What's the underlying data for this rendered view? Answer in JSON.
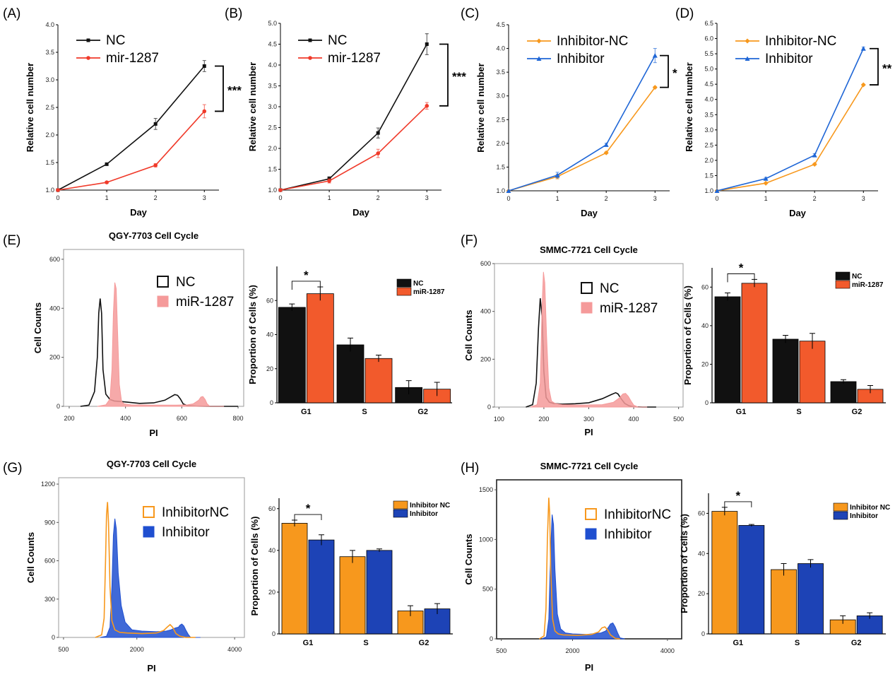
{
  "panel_labels": [
    "(A)",
    "(B)",
    "(C)",
    "(D)",
    "(E)",
    "(F)",
    "(G)",
    "(H)"
  ],
  "colors": {
    "nc_black": "#111111",
    "mir_red": "#f03a2a",
    "inhibitor_nc_orange": "#f7981d",
    "inhibitor_blue": "#1f66d6",
    "hist_red_fill": "#f59a9a",
    "bar_red": "#f25a2c",
    "bar_blue": "#1d43b6"
  },
  "chart_data": [
    {
      "id": "A",
      "type": "line",
      "x": [
        0,
        1,
        2,
        3
      ],
      "xlabel": "Day",
      "ylabel": "Relative cell number",
      "xlim": [
        0,
        3.3
      ],
      "ylim": [
        1.0,
        4.0
      ],
      "yticks": [
        "1.0",
        "1.5",
        "2.0",
        "2.5",
        "3.0",
        "3.5",
        "4.0"
      ],
      "xticks": [
        "0",
        "1",
        "2",
        "3"
      ],
      "series": [
        {
          "name": "NC",
          "values": [
            1.0,
            1.47,
            2.2,
            3.25
          ],
          "errors": [
            0,
            0.02,
            0.1,
            0.1
          ],
          "color": "#111111",
          "marker": "square"
        },
        {
          "name": "mir-1287",
          "values": [
            1.0,
            1.14,
            1.45,
            2.43
          ],
          "errors": [
            0,
            0.02,
            0.03,
            0.12
          ],
          "color": "#f03a2a",
          "marker": "circle"
        }
      ],
      "significance": "***"
    },
    {
      "id": "B",
      "type": "line",
      "x": [
        0,
        1,
        2,
        3
      ],
      "xlabel": "Day",
      "ylabel": "Relative cell number",
      "xlim": [
        0,
        3.3
      ],
      "ylim": [
        1.0,
        5.0
      ],
      "yticks": [
        "1.0",
        "1.5",
        "2.0",
        "2.5",
        "3.0",
        "3.5",
        "4.0",
        "4.5",
        "5.0"
      ],
      "xticks": [
        "0",
        "1",
        "2",
        "3"
      ],
      "series": [
        {
          "name": "NC",
          "values": [
            1.0,
            1.27,
            2.37,
            4.5
          ],
          "errors": [
            0,
            0.05,
            0.12,
            0.25
          ],
          "color": "#111111",
          "marker": "square"
        },
        {
          "name": "mir-1287",
          "values": [
            1.0,
            1.22,
            1.88,
            3.02
          ],
          "errors": [
            0,
            0.05,
            0.1,
            0.08
          ],
          "color": "#f03a2a",
          "marker": "circle"
        }
      ],
      "significance": "***"
    },
    {
      "id": "C",
      "type": "line",
      "x": [
        0,
        1,
        2,
        3
      ],
      "xlabel": "Day",
      "ylabel": "Relative cell number",
      "xlim": [
        0,
        3.3
      ],
      "ylim": [
        1.0,
        4.5
      ],
      "yticks": [
        "1.0",
        "1.5",
        "2.0",
        "2.5",
        "3.0",
        "3.5",
        "4.0",
        "4.5"
      ],
      "xticks": [
        "0",
        "1",
        "2",
        "3"
      ],
      "series": [
        {
          "name": "Inhibitor-NC",
          "values": [
            1.0,
            1.3,
            1.8,
            3.18
          ],
          "errors": [
            0,
            0.05,
            0.02,
            0.02
          ],
          "color": "#f7981d",
          "marker": "diamond"
        },
        {
          "name": "Inhibitor",
          "values": [
            1.0,
            1.33,
            1.97,
            3.85
          ],
          "errors": [
            0,
            0.06,
            0.03,
            0.15
          ],
          "color": "#1f66d6",
          "marker": "triangle"
        }
      ],
      "significance": "*"
    },
    {
      "id": "D",
      "type": "line",
      "x": [
        0,
        1,
        2,
        3
      ],
      "xlabel": "Day",
      "ylabel": "Relative cell number",
      "xlim": [
        0,
        3.3
      ],
      "ylim": [
        1.0,
        6.5
      ],
      "yticks": [
        "1.0",
        "1.5",
        "2.0",
        "2.5",
        "3.0",
        "3.5",
        "4.0",
        "4.5",
        "5.0",
        "5.5",
        "6.0",
        "6.5"
      ],
      "xticks": [
        "0",
        "1",
        "2",
        "3"
      ],
      "series": [
        {
          "name": "Inhibitor-NC",
          "values": [
            1.0,
            1.25,
            1.87,
            4.48
          ],
          "errors": [
            0,
            0.02,
            0.03,
            0.02
          ],
          "color": "#f7981d",
          "marker": "diamond"
        },
        {
          "name": "Inhibitor",
          "values": [
            1.0,
            1.4,
            2.17,
            5.67
          ],
          "errors": [
            0,
            0.04,
            0.05,
            0.05
          ],
          "color": "#1f66d6",
          "marker": "triangle"
        }
      ],
      "significance": "**"
    },
    {
      "id": "E-histogram",
      "type": "area",
      "title": "QGY-7703 Cell Cycle",
      "xlabel": "PI",
      "ylabel": "Cell Counts",
      "xlim": [
        180,
        820
      ],
      "ylim": [
        0,
        640
      ],
      "xticks": [
        "200",
        "400",
        "600",
        "800"
      ],
      "yticks": [
        "0",
        "200",
        "400",
        "600"
      ],
      "series": [
        {
          "name": "NC",
          "style": "outline",
          "color": "#111111",
          "x": [
            240,
            270,
            290,
            300,
            305,
            310,
            315,
            320,
            330,
            345,
            360,
            380,
            400,
            450,
            500,
            540,
            560,
            575,
            585,
            595,
            605,
            620,
            650,
            700,
            750,
            800
          ],
          "y": [
            0,
            5,
            60,
            200,
            380,
            440,
            380,
            150,
            50,
            28,
            22,
            20,
            18,
            12,
            14,
            25,
            38,
            48,
            45,
            30,
            10,
            3,
            1,
            0,
            0,
            0
          ]
        },
        {
          "name": "miR-1287",
          "style": "filled",
          "color": "#f59a9a",
          "x": [
            300,
            330,
            345,
            352,
            357,
            362,
            367,
            372,
            378,
            386,
            395,
            420,
            500,
            580,
            620,
            640,
            660,
            668,
            675,
            683,
            690,
            700,
            750
          ],
          "y": [
            0,
            6,
            30,
            150,
            380,
            505,
            480,
            300,
            90,
            20,
            10,
            6,
            5,
            5,
            6,
            10,
            25,
            38,
            40,
            28,
            10,
            0,
            0
          ]
        }
      ]
    },
    {
      "id": "E-bar",
      "type": "bar",
      "categories": [
        "G1",
        "S",
        "G2"
      ],
      "ylabel": "Proportion of Cells (%)",
      "ylim": [
        0,
        80
      ],
      "yticks": [
        "0",
        "20",
        "40",
        "60"
      ],
      "series": [
        {
          "name": "NC",
          "values": [
            56,
            34,
            9
          ],
          "errors": [
            2,
            4,
            4
          ],
          "color": "#111111"
        },
        {
          "name": "miR-1287",
          "values": [
            64,
            26,
            8
          ],
          "errors": [
            4,
            2,
            4
          ],
          "color": "#f25a2c"
        }
      ],
      "significance": "*"
    },
    {
      "id": "F-histogram",
      "type": "area",
      "title": "SMMC-7721 Cell Cycle",
      "xlabel": "PI",
      "ylabel": "Cell Counts",
      "xlim": [
        90,
        510
      ],
      "ylim": [
        0,
        600
      ],
      "xticks": [
        "100",
        "200",
        "300",
        "400",
        "500"
      ],
      "yticks": [
        "0",
        "200",
        "400",
        "600"
      ],
      "series": [
        {
          "name": "NC",
          "style": "outline",
          "color": "#111111",
          "x": [
            160,
            175,
            183,
            188,
            192,
            196,
            200,
            205,
            212,
            222,
            240,
            270,
            300,
            330,
            350,
            360,
            365,
            372,
            380,
            390,
            400,
            420,
            450
          ],
          "y": [
            0,
            10,
            100,
            330,
            455,
            380,
            150,
            40,
            20,
            15,
            12,
            14,
            18,
            35,
            52,
            60,
            55,
            35,
            15,
            5,
            1,
            0,
            0
          ]
        },
        {
          "name": "miR-1287",
          "style": "filled",
          "color": "#f59a9a",
          "x": [
            170,
            185,
            192,
            196,
            199,
            202,
            206,
            211,
            217,
            225,
            240,
            280,
            330,
            355,
            368,
            376,
            382,
            388,
            394,
            400,
            410,
            430
          ],
          "y": [
            0,
            10,
            100,
            420,
            565,
            520,
            300,
            80,
            25,
            15,
            10,
            8,
            10,
            20,
            38,
            55,
            57,
            45,
            25,
            8,
            0,
            0
          ]
        }
      ]
    },
    {
      "id": "F-bar",
      "type": "bar",
      "categories": [
        "G1",
        "S",
        "G2"
      ],
      "ylabel": "Proportion of Cells (%)",
      "ylim": [
        0,
        70
      ],
      "yticks": [
        "0",
        "20",
        "40",
        "60"
      ],
      "series": [
        {
          "name": "NC",
          "values": [
            55,
            33,
            11
          ],
          "errors": [
            2,
            2,
            1
          ],
          "color": "#111111"
        },
        {
          "name": "miR-1287",
          "values": [
            62,
            32,
            7
          ],
          "errors": [
            2,
            4,
            2
          ],
          "color": "#f25a2c"
        }
      ],
      "significance": "*"
    },
    {
      "id": "G-histogram",
      "type": "area",
      "title": "QGY-7703 Cell Cycle",
      "xlabel": "PI",
      "ylabel": "Cell Counts",
      "xlim": [
        400,
        4200
      ],
      "ylim": [
        0,
        1250
      ],
      "xticks": [
        "500",
        "2000",
        "4000"
      ],
      "yticks": [
        "0",
        "300",
        "600",
        "900",
        "1200"
      ],
      "series": [
        {
          "name": "Inhibitor",
          "style": "filled",
          "color": "#1f4fd0",
          "x": [
            1250,
            1380,
            1450,
            1490,
            1520,
            1550,
            1580,
            1620,
            1680,
            1760,
            1900,
            2100,
            2400,
            2600,
            2700,
            2760,
            2800,
            2850,
            2880,
            2920,
            2960,
            3000,
            3050,
            3100,
            3300
          ],
          "y": [
            0,
            10,
            80,
            400,
            800,
            930,
            850,
            500,
            250,
            120,
            60,
            50,
            45,
            50,
            60,
            70,
            75,
            80,
            95,
            105,
            90,
            60,
            25,
            0,
            0
          ]
        },
        {
          "name": "InhibitorNC",
          "style": "outline",
          "color": "#f7981d",
          "x": [
            1150,
            1280,
            1330,
            1360,
            1380,
            1400,
            1420,
            1450,
            1490,
            1550,
            1650,
            1800,
            2100,
            2400,
            2550,
            2620,
            2680,
            2730,
            2800,
            2880,
            3000,
            3200
          ],
          "y": [
            0,
            20,
            150,
            600,
            960,
            1060,
            900,
            400,
            130,
            60,
            40,
            35,
            30,
            35,
            55,
            80,
            100,
            80,
            30,
            10,
            0,
            0
          ]
        }
      ]
    },
    {
      "id": "G-bar",
      "type": "bar",
      "categories": [
        "G1",
        "S",
        "G2"
      ],
      "ylabel": "Proportion of Cells (%)",
      "ylim": [
        0,
        65
      ],
      "yticks": [
        "0",
        "20",
        "40",
        "60"
      ],
      "series": [
        {
          "name": "Inhibitor NC",
          "values": [
            53,
            37,
            11
          ],
          "errors": [
            1.5,
            3,
            2.5
          ],
          "color": "#f7981d"
        },
        {
          "name": "Inhibitor",
          "values": [
            45,
            40,
            12
          ],
          "errors": [
            2.5,
            0.7,
            2.5
          ],
          "color": "#1d43b6"
        }
      ],
      "significance": "*"
    },
    {
      "id": "H-histogram",
      "type": "area",
      "title": "SMMC-7721 Cell Cycle",
      "xlabel": "PI",
      "ylabel": "Cell Counts",
      "xlim": [
        400,
        4300
      ],
      "ylim": [
        0,
        1600
      ],
      "xticks": [
        "500",
        "2000",
        "4000"
      ],
      "yticks": [
        "0",
        "500",
        "1000",
        "1500"
      ],
      "series": [
        {
          "name": "Inhibitor",
          "style": "filled",
          "color": "#1f4fd0",
          "x": [
            1350,
            1450,
            1500,
            1540,
            1570,
            1600,
            1630,
            1680,
            1750,
            1850,
            2000,
            2300,
            2600,
            2700,
            2760,
            2800,
            2850,
            2900,
            2950,
            3000,
            3100
          ],
          "y": [
            0,
            20,
            200,
            900,
            1250,
            1150,
            700,
            250,
            100,
            60,
            50,
            45,
            60,
            80,
            120,
            150,
            160,
            120,
            60,
            10,
            0
          ]
        },
        {
          "name": "InhibitorNC",
          "style": "outline",
          "color": "#f7981d",
          "x": [
            1300,
            1400,
            1440,
            1470,
            1500,
            1520,
            1540,
            1580,
            1630,
            1700,
            1800,
            2100,
            2400,
            2550,
            2620,
            2680,
            2740,
            2800,
            2900,
            3000
          ],
          "y": [
            0,
            30,
            300,
            1000,
            1420,
            1250,
            700,
            200,
            80,
            50,
            40,
            35,
            45,
            70,
            110,
            120,
            90,
            40,
            5,
            0
          ]
        }
      ]
    },
    {
      "id": "H-bar",
      "type": "bar",
      "categories": [
        "G1",
        "S",
        "G2"
      ],
      "ylabel": "Proportion of Cells (%)",
      "ylim": [
        0,
        70
      ],
      "yticks": [
        "0",
        "20",
        "40",
        "60"
      ],
      "series": [
        {
          "name": "Inhibitor NC",
          "values": [
            61,
            32,
            7
          ],
          "errors": [
            2,
            3,
            2
          ],
          "color": "#f7981d"
        },
        {
          "name": "Inhibitor",
          "values": [
            54,
            35,
            9
          ],
          "errors": [
            0.5,
            2,
            1.5
          ],
          "color": "#1d43b6"
        }
      ],
      "significance": "*"
    }
  ]
}
